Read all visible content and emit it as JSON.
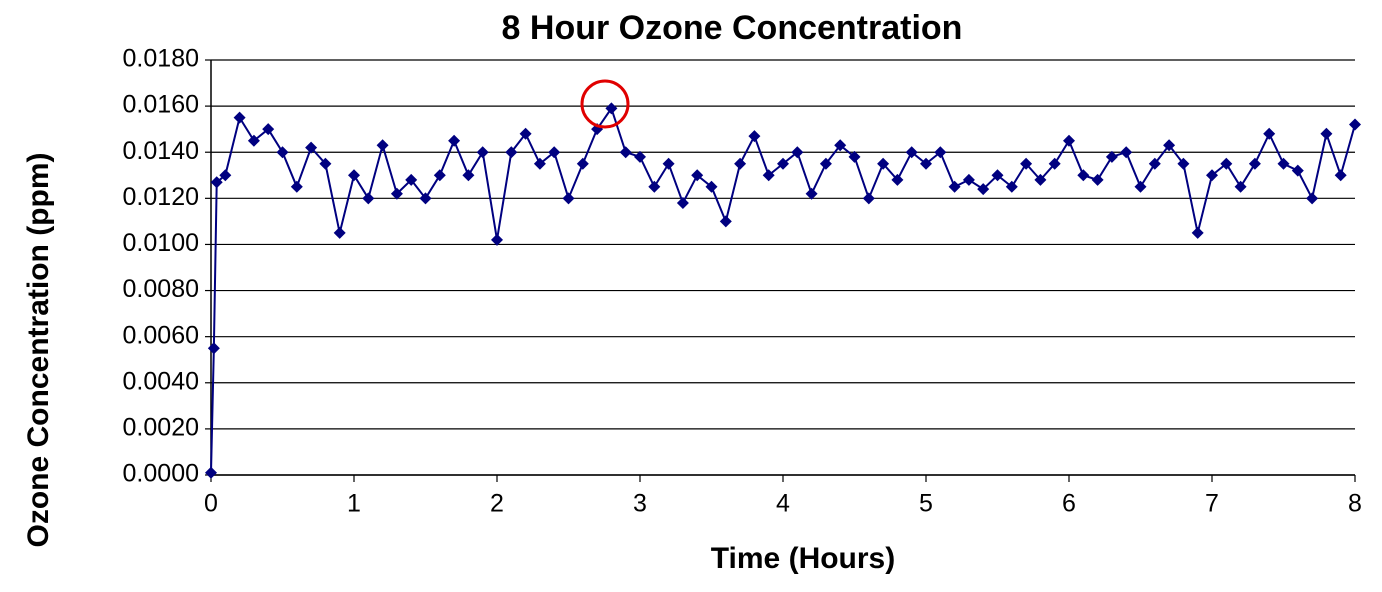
{
  "chart_data": {
    "type": "line",
    "title": "8 Hour Ozone Concentration",
    "x_label": "Time (Hours)",
    "y_label": "Ozone Concentration (ppm)",
    "x": [
      0,
      0.02,
      0.04,
      0.1,
      0.2,
      0.3,
      0.4,
      0.5,
      0.6,
      0.7,
      0.8,
      0.9,
      1.0,
      1.1,
      1.2,
      1.3,
      1.4,
      1.5,
      1.6,
      1.7,
      1.8,
      1.9,
      2.0,
      2.1,
      2.2,
      2.3,
      2.4,
      2.5,
      2.6,
      2.7,
      2.8,
      2.9,
      3.0,
      3.1,
      3.2,
      3.3,
      3.4,
      3.5,
      3.6,
      3.7,
      3.8,
      3.9,
      4.0,
      4.1,
      4.2,
      4.3,
      4.4,
      4.5,
      4.6,
      4.7,
      4.8,
      4.9,
      5.0,
      5.1,
      5.2,
      5.3,
      5.4,
      5.5,
      5.6,
      5.7,
      5.8,
      5.9,
      6.0,
      6.1,
      6.2,
      6.3,
      6.4,
      6.5,
      6.6,
      6.7,
      6.8,
      6.9,
      7.0,
      7.1,
      7.2,
      7.3,
      7.4,
      7.5,
      7.6,
      7.7,
      7.8,
      7.9,
      8.0
    ],
    "series": [
      {
        "name": "Ozone",
        "color": "#000080",
        "values": [
          0.0001,
          0.0055,
          0.0127,
          0.013,
          0.0155,
          0.0145,
          0.015,
          0.014,
          0.0125,
          0.0142,
          0.0135,
          0.0105,
          0.013,
          0.012,
          0.0143,
          0.0122,
          0.0128,
          0.012,
          0.013,
          0.0145,
          0.013,
          0.014,
          0.0102,
          0.014,
          0.0148,
          0.0135,
          0.014,
          0.012,
          0.0135,
          0.015,
          0.0159,
          0.014,
          0.0138,
          0.0125,
          0.0135,
          0.0118,
          0.013,
          0.0125,
          0.011,
          0.0135,
          0.0147,
          0.013,
          0.0135,
          0.014,
          0.0122,
          0.0135,
          0.0143,
          0.0138,
          0.012,
          0.0135,
          0.0128,
          0.014,
          0.0135,
          0.014,
          0.0125,
          0.0128,
          0.0124,
          0.013,
          0.0125,
          0.0135,
          0.0128,
          0.0135,
          0.0145,
          0.013,
          0.0128,
          0.0138,
          0.014,
          0.0125,
          0.0135,
          0.0143,
          0.0135,
          0.0105,
          0.013,
          0.0135,
          0.0125,
          0.0135,
          0.0148,
          0.0135,
          0.0132,
          0.012,
          0.0148,
          0.013,
          0.0152
        ]
      }
    ],
    "xlim": [
      0,
      8
    ],
    "xticks": [
      0,
      1,
      2,
      3,
      4,
      5,
      6,
      7,
      8
    ],
    "ylim": [
      0,
      0.018
    ],
    "yticks": [
      {
        "value": 0,
        "label": "0.0000"
      },
      {
        "value": 0.002,
        "label": "0.0020"
      },
      {
        "value": 0.004,
        "label": "0.0040"
      },
      {
        "value": 0.006,
        "label": "0.0060"
      },
      {
        "value": 0.008,
        "label": "0.0080"
      },
      {
        "value": 0.01,
        "label": "0.0100"
      },
      {
        "value": 0.012,
        "label": "0.0120"
      },
      {
        "value": 0.014,
        "label": "0.0140"
      },
      {
        "value": 0.016,
        "label": "0.0160"
      },
      {
        "value": 0.018,
        "label": "0.0180"
      }
    ],
    "grid": true
  }
}
